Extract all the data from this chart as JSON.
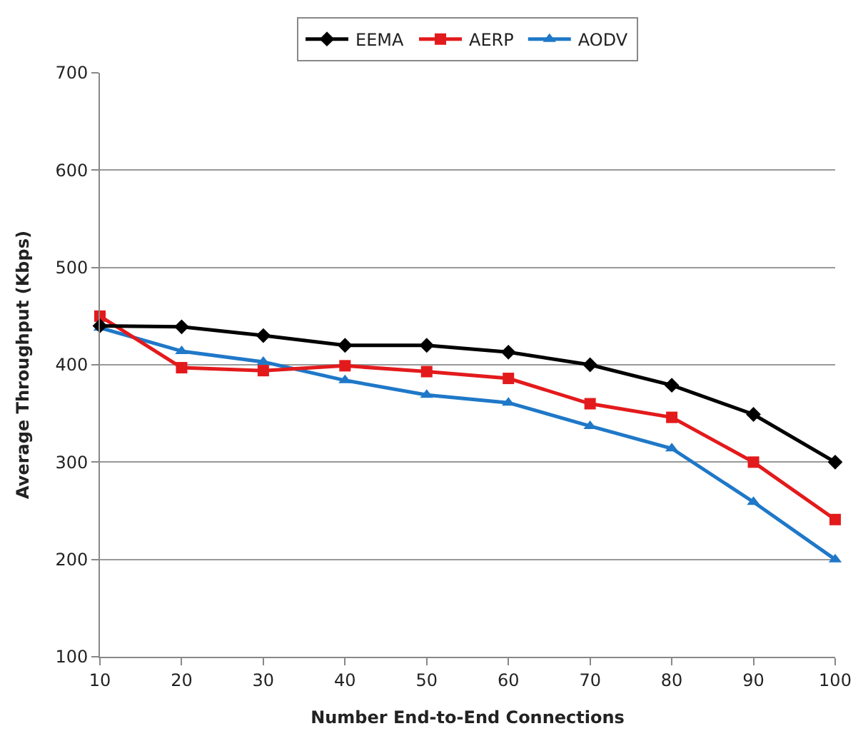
{
  "chart_data": {
    "type": "line",
    "xlabel": "Number End-to-End Connections",
    "ylabel": "Average Throughput (Kbps)",
    "x": [
      10,
      20,
      30,
      40,
      50,
      60,
      70,
      80,
      90,
      100
    ],
    "series": [
      {
        "name": "EEMA",
        "color": "#000000",
        "marker": "diamond",
        "values": [
          440,
          439,
          430,
          420,
          420,
          413,
          400,
          379,
          349,
          300
        ]
      },
      {
        "name": "AERP",
        "color": "#e31a1c",
        "marker": "square",
        "values": [
          450,
          397,
          394,
          399,
          393,
          386,
          360,
          346,
          300,
          241
        ]
      },
      {
        "name": "AODV",
        "color": "#1f78c8",
        "marker": "triangle",
        "values": [
          438,
          414,
          403,
          384,
          369,
          361,
          337,
          314,
          259,
          200
        ]
      }
    ],
    "xlim": [
      10,
      100
    ],
    "xticks": [
      10,
      20,
      30,
      40,
      50,
      60,
      70,
      80,
      90,
      100
    ],
    "ylim": [
      100,
      700
    ],
    "yticks": [
      100,
      200,
      300,
      400,
      500,
      600,
      700
    ],
    "grid": "y",
    "legend": "top",
    "line_style": "solid"
  }
}
